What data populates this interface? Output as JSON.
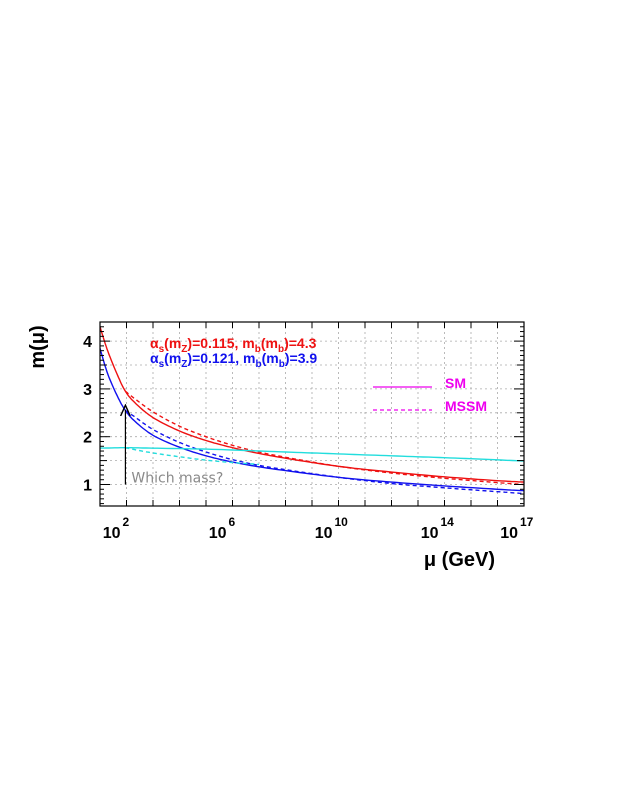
{
  "chart_data": {
    "type": "line",
    "title": "",
    "xlabel": "μ (GeV)",
    "ylabel": "m(μ)",
    "xscale": "log10",
    "xlim": [
      10,
      1e+17
    ],
    "ylim": [
      0.55,
      4.4
    ],
    "grid": true,
    "x_ticks": [
      {
        "value": 100,
        "base": "10",
        "exp": "2"
      },
      {
        "value": 1000000,
        "base": "10",
        "exp": "6"
      },
      {
        "value": 10000000000,
        "base": "10",
        "exp": "10"
      },
      {
        "value": 100000000000000,
        "base": "10",
        "exp": "14"
      },
      {
        "value": 100000000000000000,
        "base": "10",
        "exp": "17"
      }
    ],
    "y_ticks": [
      {
        "value": 1,
        "label": "1"
      },
      {
        "value": 2,
        "label": "2"
      },
      {
        "value": 3,
        "label": "3"
      },
      {
        "value": 4,
        "label": "4"
      }
    ],
    "legend": {
      "position": "top-right",
      "entries": [
        {
          "label": "SM",
          "style": "solid",
          "color": "#ee00ee"
        },
        {
          "label": "MSSM",
          "style": "dashed",
          "color": "#ee00ee"
        }
      ]
    },
    "annotations": {
      "red": {
        "as_base": "α",
        "as_sub": "s",
        "as_arg": "(m",
        "as_arg_sub": "Z",
        "as_val": ")=0.115,  m",
        "mb_sub1": "b",
        "mb_mid": "(m",
        "mb_sub2": "b",
        "mb_val": ")=4.3",
        "color": "#ee1111"
      },
      "blue": {
        "as_base": "α",
        "as_sub": "s",
        "as_arg": "(m",
        "as_arg_sub": "Z",
        "as_val": ")=0.121,  m",
        "mb_sub1": "b",
        "mb_mid": "(m",
        "mb_sub2": "b",
        "mb_val": ")=3.9",
        "color": "#1111ee"
      },
      "arrow_note": {
        "text": "Which mass?",
        "x": 91,
        "y_from": 1.0,
        "y_to": 2.6
      }
    },
    "series": [
      {
        "color": "#ee1111",
        "style": "solid",
        "x": [
          10,
          20,
          50,
          91,
          200,
          1000,
          10000,
          100000,
          1000000,
          10000000,
          100000000,
          10000000000,
          1000000000000,
          100000000000000,
          10000000000000000,
          100000000000000000
        ],
        "y": [
          4.3,
          3.78,
          3.24,
          2.95,
          2.72,
          2.4,
          2.12,
          1.92,
          1.77,
          1.65,
          1.55,
          1.38,
          1.26,
          1.16,
          1.08,
          1.05
        ]
      },
      {
        "color": "#ee1111",
        "style": "dashed",
        "x": [
          91,
          200,
          1000,
          10000,
          100000,
          1000000,
          10000000,
          100000000,
          10000000000,
          1000000000000,
          100000000000000,
          10000000000000000,
          100000000000000000
        ],
        "y": [
          2.95,
          2.8,
          2.52,
          2.22,
          2.0,
          1.82,
          1.68,
          1.57,
          1.38,
          1.24,
          1.13,
          1.04,
          1.0
        ]
      },
      {
        "color": "#1111ee",
        "style": "solid",
        "x": [
          10,
          20,
          50,
          91,
          200,
          1000,
          10000,
          100000,
          1000000,
          10000000,
          100000000,
          10000000000,
          1000000000000,
          100000000000000,
          10000000000000000,
          100000000000000000
        ],
        "y": [
          3.85,
          3.3,
          2.8,
          2.55,
          2.33,
          2.03,
          1.78,
          1.6,
          1.47,
          1.37,
          1.29,
          1.15,
          1.05,
          0.97,
          0.9,
          0.87
        ]
      },
      {
        "color": "#1111ee",
        "style": "dashed",
        "x": [
          91,
          200,
          1000,
          10000,
          100000,
          1000000,
          10000000,
          100000000,
          10000000000,
          1000000000000,
          100000000000000,
          10000000000000000,
          100000000000000000
        ],
        "y": [
          2.55,
          2.42,
          2.15,
          1.88,
          1.68,
          1.52,
          1.4,
          1.31,
          1.15,
          1.02,
          0.93,
          0.85,
          0.81
        ]
      },
      {
        "color": "#22dddd",
        "style": "solid",
        "x": [
          10,
          100,
          1000,
          100000,
          10000000,
          1000000000,
          100000000000,
          10000000000000,
          1000000000000000,
          100000000000000000
        ],
        "y": [
          1.76,
          1.77,
          1.76,
          1.74,
          1.7,
          1.66,
          1.62,
          1.58,
          1.54,
          1.49
        ]
      },
      {
        "color": "#22dddd",
        "style": "dashed",
        "x": [
          91,
          200,
          1000,
          10000,
          100000,
          1000000,
          10000000
        ],
        "y": [
          1.77,
          1.73,
          1.66,
          1.58,
          1.51,
          1.46,
          1.42
        ]
      }
    ]
  }
}
